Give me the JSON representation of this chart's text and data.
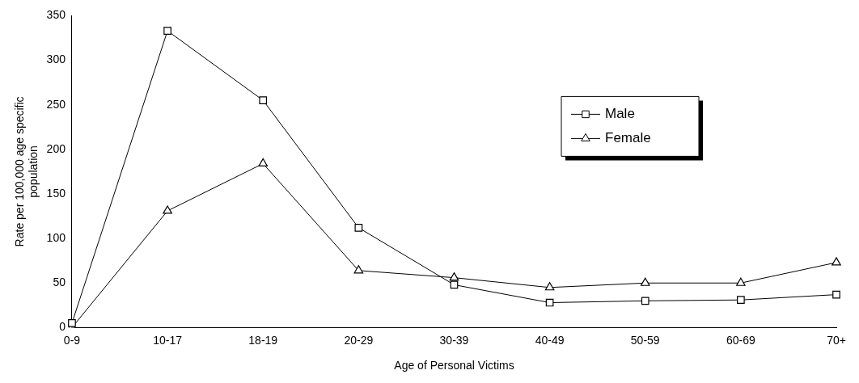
{
  "chart_data": {
    "type": "line",
    "xlabel": "Age of Personal Victims",
    "ylabel": "Rate per 100,000 age specific population",
    "categories": [
      "0-9",
      "10-17",
      "18-19",
      "20-29",
      "30-39",
      "40-49",
      "50-59",
      "60-69",
      "70+"
    ],
    "series": [
      {
        "name": "Male",
        "color": "#000000",
        "marker": "square",
        "values": [
          5,
          333,
          255,
          112,
          48,
          28,
          30,
          31,
          37
        ]
      },
      {
        "name": "Female",
        "color": "#000000",
        "marker": "triangle",
        "values": [
          0,
          131,
          184,
          64,
          56,
          45,
          50,
          50,
          73
        ]
      }
    ],
    "ylim": [
      0,
      350
    ],
    "yticks": [
      0,
      50,
      100,
      150,
      200,
      250,
      300,
      350
    ],
    "grid": false,
    "legend": "top right"
  }
}
